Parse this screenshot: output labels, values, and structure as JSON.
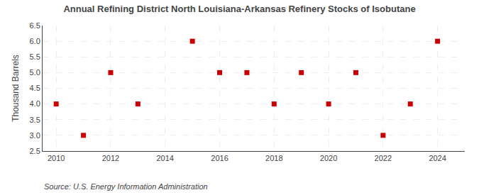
{
  "chart_data": {
    "type": "scatter",
    "title": "Annual Refining District North Louisiana-Arkansas Refinery Stocks of Isobutane",
    "ylabel": "Thousand Barrels",
    "annotations": [
      "Source: U.S. Energy Information Administration"
    ],
    "x": [
      2010,
      2011,
      2012,
      2013,
      2015,
      2016,
      2017,
      2018,
      2019,
      2020,
      2021,
      2022,
      2023,
      2024
    ],
    "values": [
      4.0,
      3.0,
      5.0,
      4.0,
      6.0,
      5.0,
      5.0,
      4.0,
      5.0,
      4.0,
      5.0,
      3.0,
      4.0,
      6.0
    ],
    "color": "#cc0000",
    "marker": "square",
    "xlim": [
      2009.5,
      2025
    ],
    "xticks": [
      2010,
      2012,
      2014,
      2016,
      2018,
      2020,
      2022,
      2024
    ],
    "ylim": [
      2.5,
      6.5
    ],
    "yticks": [
      2.5,
      {
        "value": 3.0,
        "label": "3.0"
      },
      3.5,
      {
        "value": 4.0,
        "label": "4.0"
      },
      4.5,
      {
        "value": 5.0,
        "label": "5.0"
      },
      5.5,
      {
        "value": 6.0,
        "label": "6.0"
      },
      6.5
    ],
    "grid": true
  }
}
